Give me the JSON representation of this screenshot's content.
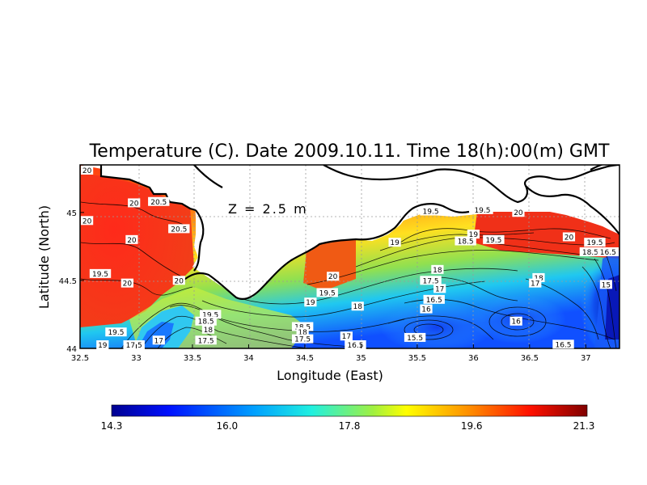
{
  "title": "Temperature (C). Date 2009.10.11. Time 18(h):00(m) GMT",
  "depth_label": "Z = 2.5 m",
  "colors": {
    "sea_warm": "#e8241c",
    "sea_hot": "#ff3010",
    "sea_orange": "#ff9a10",
    "sea_yellow": "#f6e820",
    "sea_green": "#8ce060",
    "sea_cyan": "#20d8f0",
    "sea_blue": "#1060ff",
    "sea_deep": "#0010c0",
    "coast": "#000000",
    "grid": "#9a9a9a"
  },
  "chart_data": {
    "type": "heatmap",
    "title": "Temperature (C). Date 2009.10.11. Time 18(h):00(m) GMT",
    "xlabel": "Longitude (East)",
    "ylabel": "Latitude (North)",
    "xlim": [
      32.5,
      37.3
    ],
    "ylim": [
      44.0,
      45.35
    ],
    "x_ticks": [
      "32.5",
      "33",
      "33.5",
      "34",
      "34.5",
      "35",
      "35.5",
      "36",
      "36.5",
      "37"
    ],
    "y_ticks": [
      "44",
      "44.5",
      "45"
    ],
    "x_tick_values": [
      32.5,
      33,
      33.5,
      34,
      34.5,
      35,
      35.5,
      36,
      36.5,
      37
    ],
    "y_tick_values": [
      44,
      44.5,
      45
    ],
    "grid": true,
    "colorbar": {
      "min": 14.3,
      "max": 21.3,
      "ticks": [
        "14.3",
        "16.0",
        "17.8",
        "19.6",
        "21.3"
      ]
    },
    "contour_labels": [
      {
        "text": "20",
        "lon": 32.55,
        "lat": 45.3
      },
      {
        "text": "20",
        "lon": 32.52,
        "lat": 44.92
      },
      {
        "text": "20",
        "lon": 32.98,
        "lat": 45.05
      },
      {
        "text": "20.5",
        "lon": 33.2,
        "lat": 45.06
      },
      {
        "text": "20.5",
        "lon": 33.38,
        "lat": 44.86
      },
      {
        "text": "20",
        "lon": 32.96,
        "lat": 44.78
      },
      {
        "text": "19.5",
        "lon": 32.68,
        "lat": 44.53
      },
      {
        "text": "20",
        "lon": 32.92,
        "lat": 44.46
      },
      {
        "text": "20",
        "lon": 33.38,
        "lat": 44.48
      },
      {
        "text": "19.5",
        "lon": 32.82,
        "lat": 44.1
      },
      {
        "text": "19",
        "lon": 32.7,
        "lat": 44.0
      },
      {
        "text": "17.5",
        "lon": 32.98,
        "lat": 44.0
      },
      {
        "text": "17",
        "lon": 33.2,
        "lat": 44.04
      },
      {
        "text": "19.5",
        "lon": 33.66,
        "lat": 44.23
      },
      {
        "text": "18.5",
        "lon": 33.62,
        "lat": 44.18
      },
      {
        "text": "18",
        "lon": 33.64,
        "lat": 44.12
      },
      {
        "text": "17.5",
        "lon": 33.62,
        "lat": 44.04
      },
      {
        "text": "20",
        "lon": 34.75,
        "lat": 44.51
      },
      {
        "text": "19.5",
        "lon": 34.7,
        "lat": 44.39
      },
      {
        "text": "19",
        "lon": 34.55,
        "lat": 44.32
      },
      {
        "text": "18",
        "lon": 34.97,
        "lat": 44.29
      },
      {
        "text": "18.5",
        "lon": 34.48,
        "lat": 44.14
      },
      {
        "text": "18",
        "lon": 34.48,
        "lat": 44.1
      },
      {
        "text": "17.5",
        "lon": 34.48,
        "lat": 44.05
      },
      {
        "text": "17",
        "lon": 34.87,
        "lat": 44.07
      },
      {
        "text": "16.5",
        "lon": 34.95,
        "lat": 44.0
      },
      {
        "text": "19",
        "lon": 35.3,
        "lat": 44.76
      },
      {
        "text": "19.5",
        "lon": 35.62,
        "lat": 44.99
      },
      {
        "text": "19.5",
        "lon": 36.08,
        "lat": 45.0
      },
      {
        "text": "20",
        "lon": 36.4,
        "lat": 44.98
      },
      {
        "text": "18.5",
        "lon": 35.93,
        "lat": 44.77
      },
      {
        "text": "19",
        "lon": 36.0,
        "lat": 44.82
      },
      {
        "text": "19.5",
        "lon": 36.18,
        "lat": 44.78
      },
      {
        "text": "18",
        "lon": 35.68,
        "lat": 44.56
      },
      {
        "text": "17.5",
        "lon": 35.62,
        "lat": 44.48
      },
      {
        "text": "17",
        "lon": 35.7,
        "lat": 44.42
      },
      {
        "text": "16.5",
        "lon": 35.65,
        "lat": 44.34
      },
      {
        "text": "16",
        "lon": 35.58,
        "lat": 44.27
      },
      {
        "text": "15.5",
        "lon": 35.48,
        "lat": 44.06
      },
      {
        "text": "16",
        "lon": 36.38,
        "lat": 44.18
      },
      {
        "text": "16.5",
        "lon": 36.8,
        "lat": 44.01
      },
      {
        "text": "20",
        "lon": 36.85,
        "lat": 44.8
      },
      {
        "text": "19.5",
        "lon": 37.08,
        "lat": 44.76
      },
      {
        "text": "18.5",
        "lon": 37.04,
        "lat": 44.69
      },
      {
        "text": "16.5",
        "lon": 37.22,
        "lat": 44.69
      },
      {
        "text": "18",
        "lon": 36.58,
        "lat": 44.5
      },
      {
        "text": "17",
        "lon": 36.55,
        "lat": 44.46
      },
      {
        "text": "15",
        "lon": 37.18,
        "lat": 44.45
      }
    ]
  }
}
